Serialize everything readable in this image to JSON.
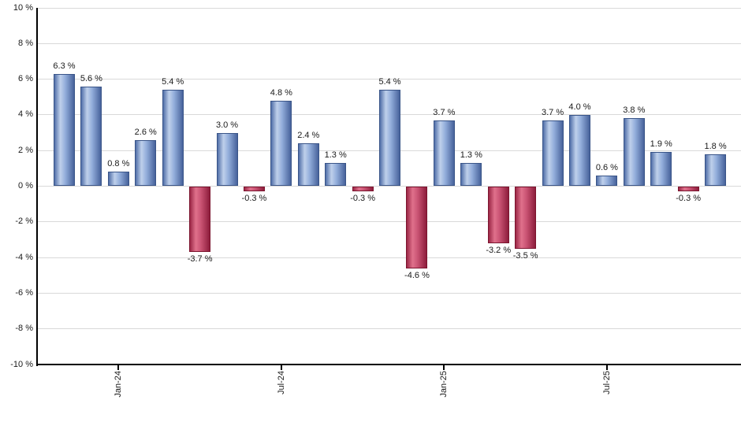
{
  "chart_data": {
    "type": "bar",
    "title": "",
    "xlabel": "",
    "ylabel": "",
    "ylim": [
      -10,
      10
    ],
    "grid": true,
    "legend": "none",
    "value_suffix": " %",
    "y_ticks": [
      {
        "value": 10,
        "label": "10 %"
      },
      {
        "value": 8,
        "label": "8 %"
      },
      {
        "value": 6,
        "label": "6 %"
      },
      {
        "value": 4,
        "label": "4 %"
      },
      {
        "value": 2,
        "label": "2 %"
      },
      {
        "value": 0,
        "label": "0 %"
      },
      {
        "value": -2,
        "label": "-2 %"
      },
      {
        "value": -4,
        "label": "-4 %"
      },
      {
        "value": -6,
        "label": "-6 %"
      },
      {
        "value": -8,
        "label": "-8 %"
      },
      {
        "value": -10,
        "label": "-10 %"
      }
    ],
    "bars": [
      {
        "value": 6.3,
        "label": "6.3 %"
      },
      {
        "value": 5.6,
        "label": "5.6 %"
      },
      {
        "value": 0.8,
        "label": "0.8 %"
      },
      {
        "value": 2.6,
        "label": "2.6 %"
      },
      {
        "value": 5.4,
        "label": "5.4 %"
      },
      {
        "value": -3.7,
        "label": "-3.7 %"
      },
      {
        "value": 3.0,
        "label": "3.0 %"
      },
      {
        "value": -0.3,
        "label": "-0.3 %"
      },
      {
        "value": 4.8,
        "label": "4.8 %"
      },
      {
        "value": 2.4,
        "label": "2.4 %"
      },
      {
        "value": 1.3,
        "label": "1.3 %"
      },
      {
        "value": -0.3,
        "label": "-0.3 %"
      },
      {
        "value": 5.4,
        "label": "5.4 %"
      },
      {
        "value": -4.6,
        "label": "-4.6 %"
      },
      {
        "value": 3.7,
        "label": "3.7 %"
      },
      {
        "value": 1.3,
        "label": "1.3 %"
      },
      {
        "value": -3.2,
        "label": "-3.2 %"
      },
      {
        "value": -3.5,
        "label": "-3.5 %"
      },
      {
        "value": 3.7,
        "label": "3.7 %"
      },
      {
        "value": 4.0,
        "label": "4.0 %"
      },
      {
        "value": 0.6,
        "label": "0.6 %"
      },
      {
        "value": 3.8,
        "label": "3.8 %"
      },
      {
        "value": 1.9,
        "label": "1.9 %"
      },
      {
        "value": -0.3,
        "label": "-0.3 %"
      },
      {
        "value": 1.8,
        "label": "1.8 %"
      }
    ],
    "x_ticks": [
      {
        "bar_index": 2,
        "label": "Jan-24"
      },
      {
        "bar_index": 8,
        "label": "Jul-24"
      },
      {
        "bar_index": 14,
        "label": "Jan-25"
      },
      {
        "bar_index": 20,
        "label": "Jul-25"
      }
    ],
    "colors": {
      "positive_gradient": [
        "#506ea8",
        "#bfd0eb",
        "#93aedb",
        "#47629b"
      ],
      "positive_border": "#3a5588",
      "negative_gradient": [
        "#9b2746",
        "#e0718c",
        "#ca5474",
        "#8d1d3c"
      ],
      "negative_border": "#7c152f",
      "gridline": "#d9d9d9",
      "axis": "#000000",
      "text": "#1a1a1a",
      "background": "#ffffff"
    }
  }
}
